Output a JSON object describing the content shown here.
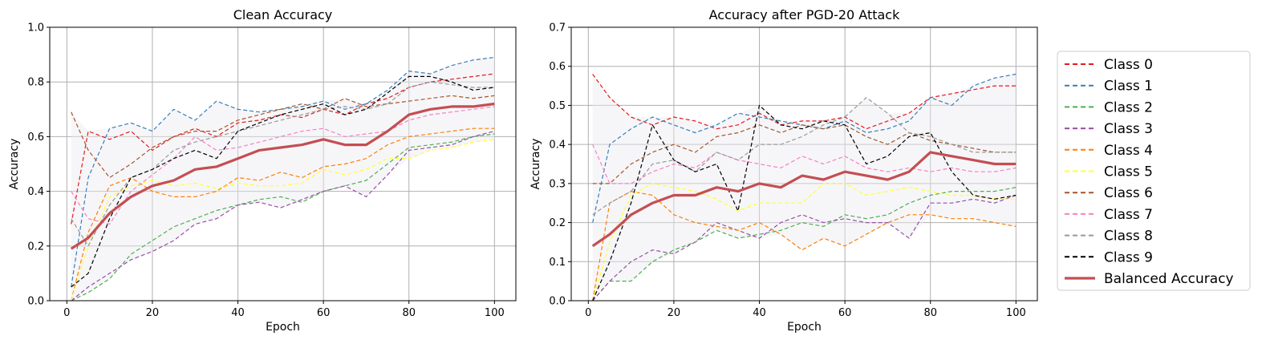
{
  "legend": {
    "entries": [
      {
        "label": "Class 0",
        "color": "#e41a1c",
        "style": "dashed"
      },
      {
        "label": "Class 1",
        "color": "#377eb8",
        "style": "dashed"
      },
      {
        "label": "Class 2",
        "color": "#4daf4a",
        "style": "dashed"
      },
      {
        "label": "Class 3",
        "color": "#984ea3",
        "style": "dashed"
      },
      {
        "label": "Class 4",
        "color": "#ff7f00",
        "style": "dashed"
      },
      {
        "label": "Class 5",
        "color": "#ffff33",
        "style": "dashed"
      },
      {
        "label": "Class 6",
        "color": "#a65628",
        "style": "dashed"
      },
      {
        "label": "Class 7",
        "color": "#f781bf",
        "style": "dashed"
      },
      {
        "label": "Class 8",
        "color": "#999999",
        "style": "dashed"
      },
      {
        "label": "Class 9",
        "color": "#000000",
        "style": "dashed"
      },
      {
        "label": "Balanced Accuracy",
        "color": "#c44e52",
        "style": "solid"
      }
    ],
    "placement": "right"
  },
  "chart_data": [
    {
      "type": "line",
      "title": "Clean Accuracy",
      "xlabel": "Epoch",
      "ylabel": "Accuracy",
      "xlim": [
        -4,
        105
      ],
      "ylim": [
        0.0,
        1.0
      ],
      "xticks": [
        "0",
        "20",
        "40",
        "60",
        "80",
        "100"
      ],
      "yticks": [
        "0.0",
        "0.2",
        "0.4",
        "0.6",
        "0.8",
        "1.0"
      ],
      "grid": true,
      "shaded_band": "min-max range of classes",
      "x": [
        1,
        5,
        10,
        15,
        20,
        25,
        30,
        35,
        40,
        45,
        50,
        55,
        60,
        65,
        70,
        75,
        80,
        85,
        90,
        95,
        100
      ],
      "series": [
        {
          "name": "Class 0",
          "values": [
            0.28,
            0.62,
            0.59,
            0.62,
            0.55,
            0.6,
            0.63,
            0.6,
            0.65,
            0.66,
            0.68,
            0.67,
            0.7,
            0.68,
            0.72,
            0.74,
            0.78,
            0.8,
            0.81,
            0.82,
            0.83
          ]
        },
        {
          "name": "Class 1",
          "values": [
            0.05,
            0.45,
            0.63,
            0.65,
            0.62,
            0.7,
            0.66,
            0.73,
            0.7,
            0.69,
            0.7,
            0.71,
            0.73,
            0.7,
            0.72,
            0.77,
            0.84,
            0.83,
            0.86,
            0.88,
            0.89
          ]
        },
        {
          "name": "Class 2",
          "values": [
            0.0,
            0.03,
            0.08,
            0.17,
            0.22,
            0.27,
            0.3,
            0.33,
            0.35,
            0.37,
            0.38,
            0.36,
            0.4,
            0.42,
            0.44,
            0.5,
            0.56,
            0.57,
            0.58,
            0.6,
            0.61
          ]
        },
        {
          "name": "Class 3",
          "values": [
            0.0,
            0.05,
            0.1,
            0.15,
            0.18,
            0.22,
            0.28,
            0.3,
            0.35,
            0.36,
            0.34,
            0.37,
            0.4,
            0.42,
            0.38,
            0.46,
            0.55,
            0.56,
            0.57,
            0.6,
            0.62
          ]
        },
        {
          "name": "Class 4",
          "values": [
            0.0,
            0.25,
            0.42,
            0.45,
            0.4,
            0.38,
            0.38,
            0.4,
            0.45,
            0.44,
            0.47,
            0.45,
            0.49,
            0.5,
            0.52,
            0.57,
            0.6,
            0.61,
            0.62,
            0.63,
            0.63
          ]
        },
        {
          "name": "Class 5",
          "values": [
            0.0,
            0.2,
            0.38,
            0.42,
            0.44,
            0.42,
            0.43,
            0.41,
            0.43,
            0.42,
            0.42,
            0.43,
            0.48,
            0.46,
            0.48,
            0.52,
            0.52,
            0.55,
            0.56,
            0.58,
            0.59
          ]
        },
        {
          "name": "Class 6",
          "values": [
            0.69,
            0.55,
            0.45,
            0.5,
            0.56,
            0.6,
            0.62,
            0.62,
            0.66,
            0.68,
            0.7,
            0.72,
            0.7,
            0.74,
            0.71,
            0.72,
            0.73,
            0.74,
            0.75,
            0.74,
            0.75
          ]
        },
        {
          "name": "Class 7",
          "values": [
            0.4,
            0.3,
            0.28,
            0.4,
            0.46,
            0.52,
            0.6,
            0.55,
            0.56,
            0.58,
            0.6,
            0.62,
            0.63,
            0.6,
            0.61,
            0.62,
            0.66,
            0.68,
            0.69,
            0.7,
            0.71
          ]
        },
        {
          "name": "Class 8",
          "values": [
            0.3,
            0.2,
            0.35,
            0.45,
            0.48,
            0.55,
            0.58,
            0.6,
            0.62,
            0.64,
            0.66,
            0.68,
            0.7,
            0.71,
            0.7,
            0.72,
            0.78,
            0.8,
            0.79,
            0.78,
            0.78
          ]
        },
        {
          "name": "Class 9",
          "values": [
            0.05,
            0.1,
            0.3,
            0.45,
            0.48,
            0.52,
            0.55,
            0.52,
            0.62,
            0.65,
            0.68,
            0.7,
            0.72,
            0.68,
            0.7,
            0.76,
            0.82,
            0.82,
            0.8,
            0.77,
            0.78
          ]
        },
        {
          "name": "Balanced Accuracy",
          "values": [
            0.19,
            0.23,
            0.32,
            0.38,
            0.42,
            0.44,
            0.48,
            0.49,
            0.52,
            0.55,
            0.56,
            0.57,
            0.59,
            0.57,
            0.57,
            0.62,
            0.68,
            0.7,
            0.71,
            0.71,
            0.72
          ]
        }
      ]
    },
    {
      "type": "line",
      "title": "Accuracy after PGD-20 Attack",
      "xlabel": "Epoch",
      "ylabel": "Accuracy",
      "xlim": [
        -4,
        105
      ],
      "ylim": [
        0.0,
        0.7
      ],
      "xticks": [
        "0",
        "20",
        "40",
        "60",
        "80",
        "100"
      ],
      "yticks": [
        "0.0",
        "0.1",
        "0.2",
        "0.3",
        "0.4",
        "0.5",
        "0.6",
        "0.7"
      ],
      "grid": true,
      "shaded_band": "min-max range of classes",
      "x": [
        1,
        5,
        10,
        15,
        20,
        25,
        30,
        35,
        40,
        45,
        50,
        55,
        60,
        65,
        70,
        75,
        80,
        85,
        90,
        95,
        100
      ],
      "series": [
        {
          "name": "Class 0",
          "values": [
            0.58,
            0.52,
            0.47,
            0.45,
            0.47,
            0.46,
            0.44,
            0.45,
            0.48,
            0.45,
            0.46,
            0.46,
            0.47,
            0.44,
            0.46,
            0.48,
            0.52,
            0.53,
            0.54,
            0.55,
            0.55
          ]
        },
        {
          "name": "Class 1",
          "values": [
            0.2,
            0.4,
            0.44,
            0.47,
            0.45,
            0.43,
            0.45,
            0.48,
            0.47,
            0.46,
            0.45,
            0.44,
            0.46,
            0.43,
            0.44,
            0.46,
            0.52,
            0.5,
            0.55,
            0.57,
            0.58
          ]
        },
        {
          "name": "Class 2",
          "values": [
            0.0,
            0.05,
            0.05,
            0.1,
            0.13,
            0.15,
            0.18,
            0.16,
            0.17,
            0.18,
            0.2,
            0.19,
            0.22,
            0.21,
            0.22,
            0.25,
            0.27,
            0.28,
            0.28,
            0.28,
            0.29
          ]
        },
        {
          "name": "Class 3",
          "values": [
            0.0,
            0.05,
            0.1,
            0.13,
            0.12,
            0.15,
            0.2,
            0.18,
            0.16,
            0.2,
            0.22,
            0.2,
            0.21,
            0.2,
            0.2,
            0.16,
            0.25,
            0.25,
            0.26,
            0.25,
            0.27
          ]
        },
        {
          "name": "Class 4",
          "values": [
            0.0,
            0.25,
            0.28,
            0.27,
            0.22,
            0.2,
            0.19,
            0.18,
            0.2,
            0.17,
            0.13,
            0.16,
            0.14,
            0.17,
            0.2,
            0.22,
            0.22,
            0.21,
            0.21,
            0.2,
            0.19
          ]
        },
        {
          "name": "Class 5",
          "values": [
            0.0,
            0.15,
            0.27,
            0.3,
            0.29,
            0.28,
            0.26,
            0.23,
            0.25,
            0.25,
            0.25,
            0.3,
            0.3,
            0.27,
            0.28,
            0.29,
            0.28,
            0.27,
            0.27,
            0.26,
            0.26
          ]
        },
        {
          "name": "Class 6",
          "values": [
            0.3,
            0.3,
            0.35,
            0.38,
            0.4,
            0.38,
            0.42,
            0.43,
            0.45,
            0.43,
            0.45,
            0.44,
            0.45,
            0.42,
            0.4,
            0.43,
            0.41,
            0.4,
            0.39,
            0.38,
            0.38
          ]
        },
        {
          "name": "Class 7",
          "values": [
            0.4,
            0.3,
            0.3,
            0.33,
            0.35,
            0.34,
            0.38,
            0.36,
            0.35,
            0.34,
            0.37,
            0.35,
            0.37,
            0.34,
            0.33,
            0.34,
            0.33,
            0.34,
            0.33,
            0.33,
            0.34
          ]
        },
        {
          "name": "Class 8",
          "values": [
            0.22,
            0.25,
            0.28,
            0.35,
            0.36,
            0.33,
            0.38,
            0.36,
            0.4,
            0.4,
            0.42,
            0.45,
            0.47,
            0.52,
            0.48,
            0.43,
            0.42,
            0.4,
            0.38,
            0.38,
            0.38
          ]
        },
        {
          "name": "Class 9",
          "values": [
            0.0,
            0.1,
            0.25,
            0.45,
            0.36,
            0.33,
            0.35,
            0.23,
            0.5,
            0.45,
            0.44,
            0.46,
            0.45,
            0.35,
            0.37,
            0.42,
            0.43,
            0.33,
            0.27,
            0.26,
            0.27
          ]
        },
        {
          "name": "Balanced Accuracy",
          "values": [
            0.14,
            0.17,
            0.22,
            0.25,
            0.27,
            0.27,
            0.29,
            0.28,
            0.3,
            0.29,
            0.32,
            0.31,
            0.33,
            0.32,
            0.31,
            0.33,
            0.38,
            0.37,
            0.36,
            0.35,
            0.35
          ]
        }
      ]
    }
  ]
}
